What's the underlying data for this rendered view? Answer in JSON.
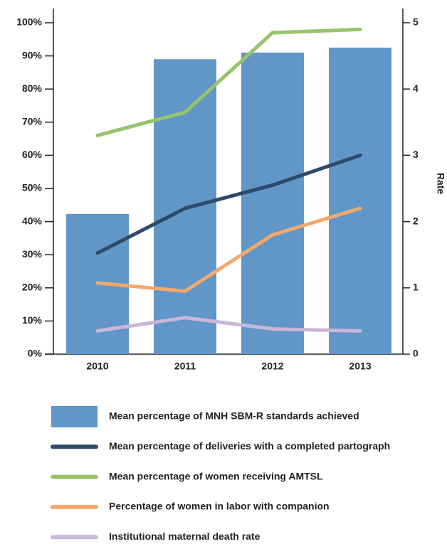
{
  "chart_data": {
    "type": "bar",
    "categories": [
      "2010",
      "2011",
      "2012",
      "2013"
    ],
    "y2_label": "Rate",
    "ylim": [
      0,
      100
    ],
    "yticks": [
      {
        "value": 0,
        "label": "0%"
      },
      {
        "value": 10,
        "label": "10%"
      },
      {
        "value": 20,
        "label": "20%"
      },
      {
        "value": 30,
        "label": "30%"
      },
      {
        "value": 40,
        "label": "40%"
      },
      {
        "value": 50,
        "label": "50%"
      },
      {
        "value": 60,
        "label": "60%"
      },
      {
        "value": 70,
        "label": "70%"
      },
      {
        "value": 80,
        "label": "80%"
      },
      {
        "value": 90,
        "label": "90%"
      },
      {
        "value": 100,
        "label": "100%"
      }
    ],
    "y2lim": [
      0,
      5
    ],
    "y2ticks": [
      0,
      1,
      2,
      3,
      4,
      5
    ],
    "series": [
      {
        "name": "Mean percentage of MNH SBM-R standards achieved",
        "type": "bar",
        "color": "#6096c8",
        "values": [
          42.3,
          89,
          91,
          92.5
        ]
      },
      {
        "name": "Mean percentage of deliveries with a completed partograph",
        "type": "line",
        "color": "#2e4a6b",
        "values": [
          30.5,
          44,
          51,
          60
        ]
      },
      {
        "name": "Mean percentage of women receiving AMTSL",
        "type": "line",
        "color": "#97c36a",
        "values": [
          66,
          73,
          97,
          98
        ]
      },
      {
        "name": "Percentage of women in labor with companion",
        "type": "line",
        "color": "#f5a86b",
        "values": [
          21.5,
          19,
          36,
          44
        ]
      },
      {
        "name": "Institutional maternal death rate",
        "type": "line",
        "color": "#c9b6d9",
        "axis": "y2",
        "values": [
          0.35,
          0.55,
          0.38,
          0.35
        ]
      }
    ]
  }
}
